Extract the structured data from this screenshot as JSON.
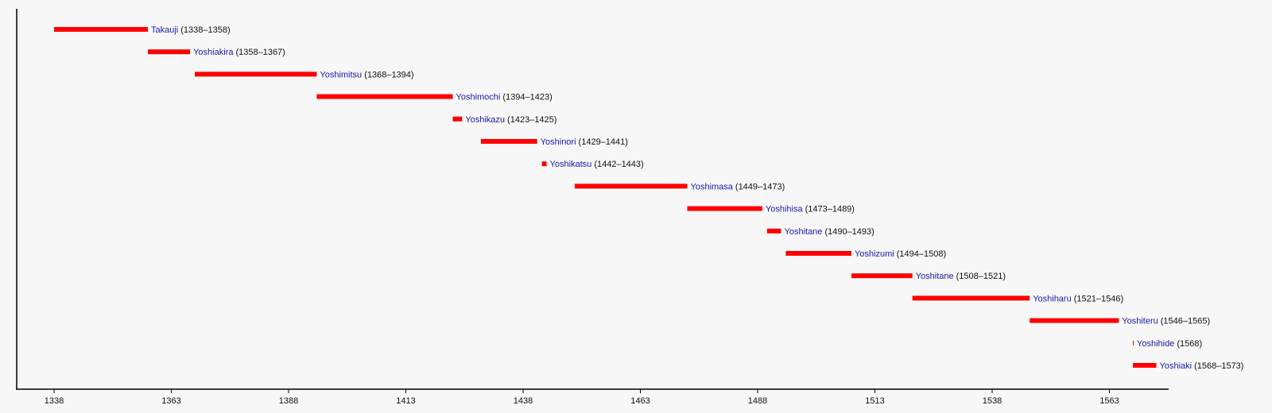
{
  "chart_data": {
    "type": "bar",
    "orientation": "horizontal-timeline",
    "title": "",
    "xlabel": "",
    "ylabel": "",
    "xlim": [
      1330,
      1580
    ],
    "x_ticks": [
      1338,
      1363,
      1388,
      1413,
      1438,
      1463,
      1488,
      1513,
      1538,
      1563
    ],
    "grid": false,
    "bar_color": "#ff0000",
    "name_color": "#1a1aa8",
    "series": [
      {
        "name": "Takauji",
        "start": 1338,
        "end": 1358,
        "years_label": "(1338–1358)"
      },
      {
        "name": "Yoshiakira",
        "start": 1358,
        "end": 1367,
        "years_label": "(1358–1367)"
      },
      {
        "name": "Yoshimitsu",
        "start": 1368,
        "end": 1394,
        "years_label": "(1368–1394)"
      },
      {
        "name": "Yoshimochi",
        "start": 1394,
        "end": 1423,
        "years_label": "(1394–1423)"
      },
      {
        "name": "Yoshikazu",
        "start": 1423,
        "end": 1425,
        "years_label": "(1423–1425)"
      },
      {
        "name": "Yoshinori",
        "start": 1429,
        "end": 1441,
        "years_label": "(1429–1441)"
      },
      {
        "name": "Yoshikatsu",
        "start": 1442,
        "end": 1443,
        "years_label": "(1442–1443)"
      },
      {
        "name": "Yoshimasa",
        "start": 1449,
        "end": 1473,
        "years_label": "(1449–1473)"
      },
      {
        "name": "Yoshihisa",
        "start": 1473,
        "end": 1489,
        "years_label": "(1473–1489)"
      },
      {
        "name": "Yoshitane",
        "start": 1490,
        "end": 1493,
        "years_label": "(1490–1493)"
      },
      {
        "name": "Yoshizumi",
        "start": 1494,
        "end": 1508,
        "years_label": "(1494–1508)"
      },
      {
        "name": "Yoshitane",
        "start": 1508,
        "end": 1521,
        "years_label": "(1508–1521)"
      },
      {
        "name": "Yoshiharu",
        "start": 1521,
        "end": 1546,
        "years_label": "(1521–1546)"
      },
      {
        "name": "Yoshiteru",
        "start": 1546,
        "end": 1565,
        "years_label": "(1546–1565)"
      },
      {
        "name": "Yoshihide",
        "start": 1568,
        "end": 1568,
        "years_label": "(1568)"
      },
      {
        "name": "Yoshiaki",
        "start": 1568,
        "end": 1573,
        "years_label": "(1568–1573)"
      }
    ]
  }
}
